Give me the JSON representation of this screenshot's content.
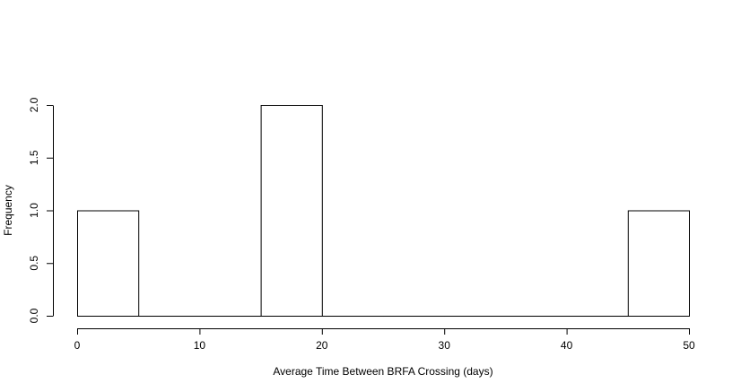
{
  "chart_data": {
    "type": "bar",
    "title": "",
    "xlabel": "Average Time Between BRFA Crossing (days)",
    "ylabel": "Frequency",
    "bins": [
      {
        "start": 0,
        "end": 5,
        "count": 1
      },
      {
        "start": 5,
        "end": 10,
        "count": 0
      },
      {
        "start": 10,
        "end": 15,
        "count": 0
      },
      {
        "start": 15,
        "end": 20,
        "count": 2
      },
      {
        "start": 20,
        "end": 25,
        "count": 0
      },
      {
        "start": 25,
        "end": 30,
        "count": 0
      },
      {
        "start": 30,
        "end": 35,
        "count": 0
      },
      {
        "start": 35,
        "end": 40,
        "count": 0
      },
      {
        "start": 40,
        "end": 45,
        "count": 0
      },
      {
        "start": 45,
        "end": 50,
        "count": 1
      }
    ],
    "xlim": [
      0,
      50
    ],
    "ylim": [
      0,
      2
    ],
    "x_ticks": [
      0,
      10,
      20,
      30,
      40,
      50
    ],
    "y_ticks": [
      0.0,
      0.5,
      1.0,
      1.5,
      2.0
    ],
    "x_tick_labels": [
      "0",
      "10",
      "20",
      "30",
      "40",
      "50"
    ],
    "y_tick_labels": [
      "0.0",
      "0.5",
      "1.0",
      "1.5",
      "2.0"
    ],
    "grid": false,
    "colors": {
      "bar_fill": "#ffffff",
      "bar_stroke": "#000000"
    }
  }
}
